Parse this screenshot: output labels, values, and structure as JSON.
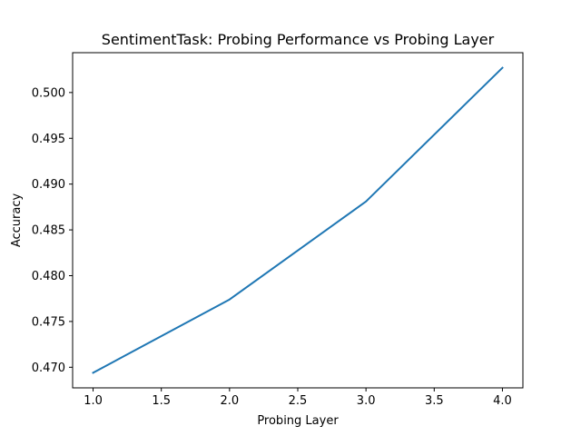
{
  "chart_data": {
    "type": "line",
    "title": "SentimentTask: Probing Performance vs Probing Layer",
    "xlabel": "Probing Layer",
    "ylabel": "Accuracy",
    "x": [
      1.0,
      2.0,
      3.0,
      4.0
    ],
    "series": [
      {
        "values": [
          0.4694,
          0.4774,
          0.4881,
          0.5027
        ],
        "color": "#1f77b4"
      }
    ],
    "xlim": [
      0.85,
      4.15
    ],
    "ylim": [
      0.46775,
      0.50435
    ],
    "xticks": [
      1.0,
      1.5,
      2.0,
      2.5,
      3.0,
      3.5,
      4.0
    ],
    "xtick_labels": [
      "1.0",
      "1.5",
      "2.0",
      "2.5",
      "3.0",
      "3.5",
      "4.0"
    ],
    "yticks": [
      0.47,
      0.475,
      0.48,
      0.485,
      0.49,
      0.495,
      0.5
    ],
    "ytick_labels": [
      "0.470",
      "0.475",
      "0.480",
      "0.485",
      "0.490",
      "0.495",
      "0.500"
    ],
    "grid": false,
    "legend": "none"
  }
}
